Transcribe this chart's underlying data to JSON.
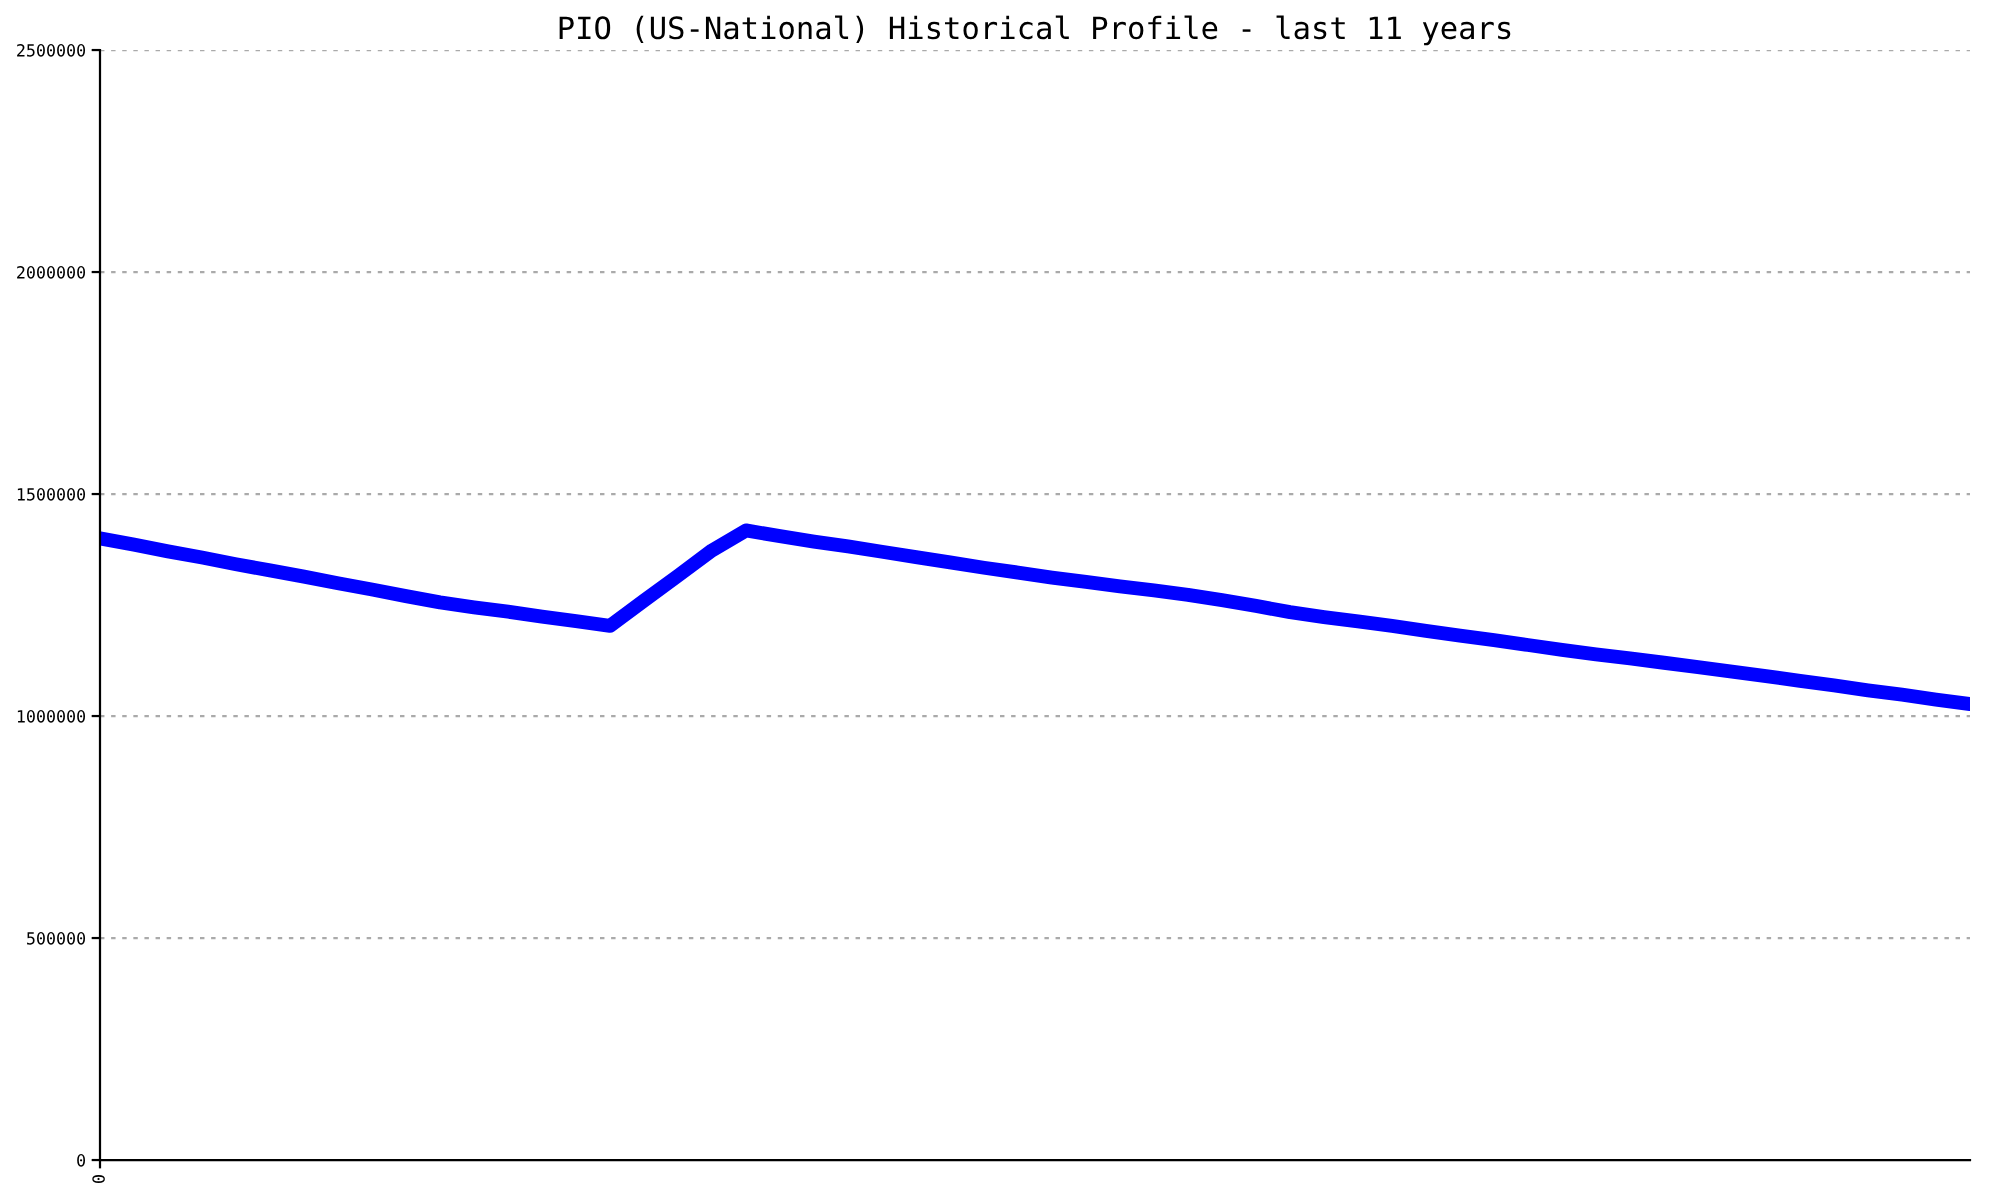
{
  "chart_data": {
    "type": "line",
    "title": "PIO (US-National) Historical Profile - last 11 years",
    "categories": [
      "0",
      null,
      null,
      null,
      null,
      null,
      null,
      null,
      null,
      null,
      null,
      null,
      null,
      null,
      null,
      null,
      null,
      null,
      null,
      null,
      null,
      null,
      null,
      null,
      null,
      null,
      null,
      null,
      null,
      null,
      null,
      null,
      null,
      null,
      null,
      null,
      null,
      null,
      null,
      null,
      null,
      null,
      null,
      null,
      null,
      null,
      null,
      null,
      null,
      null,
      null,
      null,
      null,
      null,
      null,
      null
    ],
    "series": [
      {
        "color": "#0000ff",
        "values": [
          1400000,
          1386000,
          1371000,
          1357000,
          1342000,
          1328000,
          1314000,
          1299000,
          1285000,
          1270000,
          1256000,
          1245000,
          1235000,
          1224000,
          1214000,
          1203000,
          1260000,
          1316000,
          1373000,
          1418000,
          1405000,
          1393000,
          1382000,
          1370000,
          1358000,
          1346000,
          1334000,
          1323000,
          1312000,
          1302000,
          1292000,
          1283000,
          1273000,
          1261000,
          1248000,
          1234000,
          1223000,
          1213000,
          1203000,
          1192000,
          1181000,
          1171000,
          1160000,
          1149000,
          1139000,
          1130000,
          1120000,
          1110000,
          1100000,
          1090000,
          1079000,
          1069000,
          1058000,
          1048000,
          1037000,
          1027000
        ]
      }
    ],
    "ylim": [
      0,
      2500000
    ],
    "yticks": [
      0,
      500000,
      1000000,
      1500000,
      2000000,
      2500000
    ],
    "grid": "y",
    "marker": "none",
    "line_style": "solid",
    "legend": false
  }
}
